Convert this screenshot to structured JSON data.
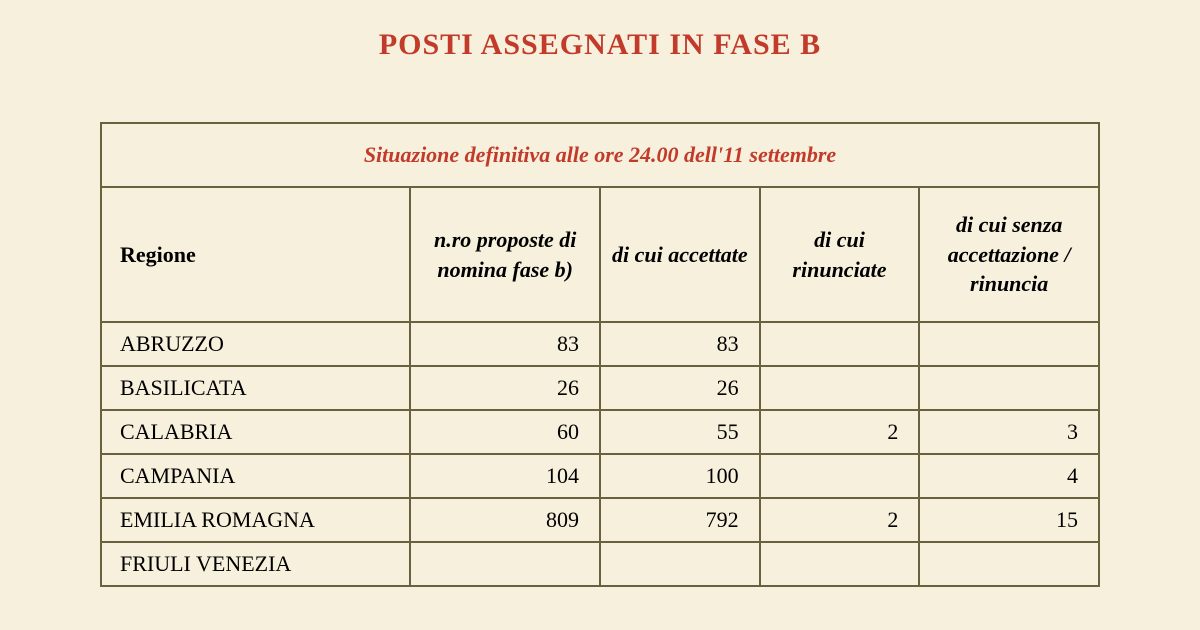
{
  "title": "POSTI ASSEGNATI IN FASE B",
  "title_color": "#c23a2a",
  "title_fontsize": 30,
  "caption": "Situazione definitiva alle ore 24.00 dell'11 settembre",
  "caption_color": "#c23a2a",
  "caption_fontsize": 22,
  "header_fontsize": 22,
  "header_color": "#000000",
  "cell_fontsize": 22,
  "cell_color": "#000000",
  "border_color": "#6b6040",
  "background_color": "#f6f0dc",
  "table": {
    "columns": [
      "Regione",
      "n.ro proposte di nomina fase b)",
      "di cui accettate",
      "di cui rinunciate",
      "di cui senza accettazione / rinuncia"
    ],
    "rows": [
      {
        "regione": "ABRUZZO",
        "c2": "83",
        "c3": "83",
        "c4": "",
        "c5": ""
      },
      {
        "regione": "BASILICATA",
        "c2": "26",
        "c3": "26",
        "c4": "",
        "c5": ""
      },
      {
        "regione": "CALABRIA",
        "c2": "60",
        "c3": "55",
        "c4": "2",
        "c5": "3"
      },
      {
        "regione": "CAMPANIA",
        "c2": "104",
        "c3": "100",
        "c4": "",
        "c5": "4"
      },
      {
        "regione": "EMILIA ROMAGNA",
        "c2": "809",
        "c3": "792",
        "c4": "2",
        "c5": "15"
      },
      {
        "regione": "FRIULI VENEZIA",
        "c2": "",
        "c3": "",
        "c4": "",
        "c5": ""
      }
    ]
  }
}
